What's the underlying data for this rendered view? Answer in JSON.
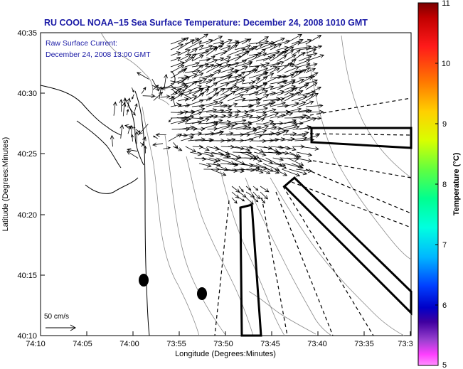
{
  "title": "RU COOL  NOAA−15  Sea Surface Temperature:  December 24, 2008 1010 GMT",
  "annotation": {
    "line1": "Raw Surface Current:",
    "line2": "December 24, 2008 13:00 GMT"
  },
  "scale": {
    "label": "50 cm/s"
  },
  "axes": {
    "xlabel": "Longitude (Degrees:Minutes)",
    "ylabel": "Latitude (Degrees:Minutes)",
    "xticks": [
      "74:10",
      "74:05",
      "74:00",
      "73:55",
      "73:50",
      "73:45",
      "73:40",
      "73:35",
      "73:3"
    ],
    "yticks": [
      "40:35",
      "40:30",
      "40:25",
      "40:20",
      "40:15",
      "40:10"
    ]
  },
  "colorbar": {
    "label": "Temperature (°C)",
    "ticks": [
      "11",
      "10",
      "9",
      "8",
      "7",
      "6",
      "5"
    ]
  },
  "colors": {
    "title": "#1a1aa6",
    "annotation": "#1a1aa6",
    "land": "#000000",
    "contour": "#8a8a8a",
    "vector": "#000000"
  }
}
